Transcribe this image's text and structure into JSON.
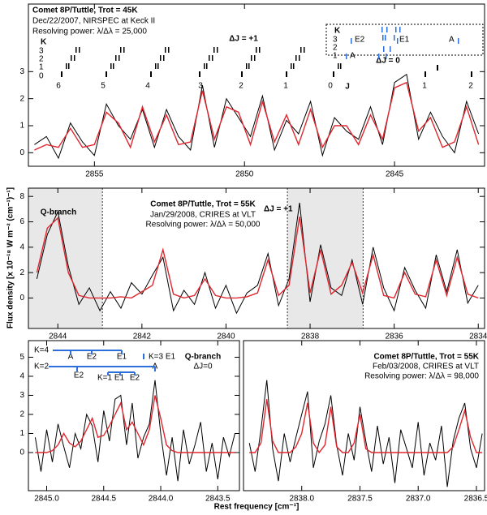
{
  "figure": {
    "ylabel": "Flux density [x 10⁻¹⁸ W m⁻² (cm⁻¹)⁻¹]",
    "xlabel": "Rest frequency [cm⁻¹]"
  },
  "chart_data": [
    {
      "type": "line",
      "annotations": [
        "Comet 8P/Tuttle, Trot = 45K",
        "Dec/22/2007, NIRSPEC at Keck II",
        "Resolving power: λ/Δλ = 25,000",
        "ΔJ = +1",
        "ΔJ = 0",
        "K",
        "3",
        "2",
        "1",
        "0",
        "6",
        "5",
        "4",
        "3",
        "2",
        "1",
        "0",
        "J",
        "1",
        "2",
        "K",
        "3",
        "2",
        "1",
        "E2",
        "E1",
        "A",
        "A"
      ],
      "x": [
        2857.0,
        2856.6,
        2856.2,
        2855.8,
        2855.4,
        2855.0,
        2854.6,
        2854.2,
        2853.8,
        2853.4,
        2853.0,
        2852.6,
        2852.2,
        2851.8,
        2851.4,
        2851.0,
        2850.6,
        2850.2,
        2849.8,
        2849.4,
        2849.0,
        2848.6,
        2848.2,
        2847.8,
        2847.4,
        2847.0,
        2846.6,
        2846.2,
        2845.8,
        2845.4,
        2845.0,
        2844.6,
        2844.2,
        2843.8,
        2843.4,
        2843.0,
        2842.6,
        2842.2
      ],
      "series": [
        {
          "color": "#000000",
          "values": [
            0.3,
            0.6,
            -0.2,
            1.1,
            0.4,
            -0.1,
            1.8,
            1.0,
            0.5,
            1.6,
            0.2,
            1.6,
            0.6,
            0.1,
            2.5,
            0.2,
            2.0,
            1.3,
            0.6,
            2.1,
            0.1,
            1.2,
            0.7,
            1.9,
            -0.1,
            1.3,
            0.8,
            0.5,
            1.7,
            0.3,
            2.6,
            2.9,
            0.5,
            1.5,
            0.6,
            0.0,
            1.9,
            0.7
          ]
        },
        {
          "color": "#e0262e",
          "values": [
            0.1,
            0.3,
            0.2,
            0.9,
            0.2,
            0.3,
            1.5,
            1.1,
            0.2,
            1.7,
            0.4,
            1.4,
            0.3,
            0.4,
            2.3,
            0.5,
            1.7,
            1.5,
            0.3,
            1.9,
            0.4,
            1.4,
            0.3,
            1.6,
            0.2,
            1.0,
            1.0,
            0.3,
            1.4,
            0.5,
            2.4,
            2.6,
            0.8,
            1.3,
            0.2,
            0.4,
            1.7,
            0.3
          ]
        }
      ],
      "xlim": [
        2857.2,
        2842.0
      ],
      "ylim": [
        -0.5,
        5.5
      ],
      "xticks": [
        2855,
        2850,
        2845
      ],
      "yticks": [
        0,
        1,
        2,
        3
      ]
    },
    {
      "type": "line",
      "annotations": [
        "Comet 8P/Tuttle, Trot = 55K",
        "Jan/29/2008, CRIRES at VLT",
        "Resolving power: λ/Δλ = 50,000",
        "ΔJ = +1",
        "Q-branch"
      ],
      "highlight": [
        [
          2844.7,
          2842.94
        ],
        [
          2838.54,
          2836.74
        ]
      ],
      "x": [
        2844.5,
        2844.25,
        2844.0,
        2843.75,
        2843.5,
        2843.25,
        2843.0,
        2842.75,
        2842.5,
        2842.25,
        2842.0,
        2841.75,
        2841.5,
        2841.25,
        2841.0,
        2840.75,
        2840.5,
        2840.25,
        2840.0,
        2839.75,
        2839.5,
        2839.25,
        2839.0,
        2838.75,
        2838.5,
        2838.25,
        2838.0,
        2837.75,
        2837.5,
        2837.25,
        2837.0,
        2836.75,
        2836.5,
        2836.25,
        2836.0,
        2835.75,
        2835.5,
        2835.25,
        2835.0,
        2834.75,
        2834.5,
        2834.25,
        2834.0
      ],
      "series": [
        {
          "color": "#000000",
          "values": [
            1.5,
            5.0,
            6.8,
            2.5,
            -0.5,
            0.8,
            -1.0,
            0.5,
            -0.8,
            1.2,
            0.3,
            1.8,
            3.2,
            -1.0,
            0.6,
            -0.5,
            2.0,
            -0.8,
            1.0,
            -1.2,
            0.4,
            1.0,
            3.5,
            -0.6,
            1.5,
            7.5,
            -0.3,
            4.2,
            0.8,
            0.2,
            3.0,
            -0.5,
            4.0,
            0.8,
            -1.0,
            2.4,
            0.6,
            -0.8,
            3.4,
            0.5,
            3.8,
            -0.4,
            1.0
          ]
        },
        {
          "color": "#e0262e",
          "values": [
            2.0,
            5.5,
            6.3,
            2.0,
            0.2,
            0.0,
            0.0,
            0.0,
            0.1,
            0.0,
            0.5,
            1.0,
            3.8,
            0.3,
            0.0,
            0.2,
            1.5,
            0.2,
            0.0,
            0.0,
            0.1,
            0.4,
            3.0,
            0.2,
            1.0,
            6.4,
            0.4,
            3.8,
            0.3,
            1.0,
            2.8,
            0.4,
            3.4,
            0.2,
            0.0,
            2.0,
            0.3,
            0.1,
            3.0,
            0.2,
            3.2,
            0.3,
            0.0
          ]
        }
      ],
      "xlim": [
        2844.7,
        2833.85
      ],
      "ylim": [
        -2.4,
        8.65
      ],
      "xticks": [
        2844,
        2842,
        2840,
        2838,
        2836,
        2834
      ],
      "yticks": [
        0,
        2,
        4,
        6,
        8
      ]
    },
    {
      "type": "line",
      "annotations": [
        "Q-branch",
        "ΔJ=0",
        "K=4",
        "A",
        "E2",
        "E1",
        "K=3 E1",
        "K=2",
        "E2",
        "K=1 E1",
        "E2",
        "A"
      ],
      "x": [
        2845.1,
        2845.05,
        2845.0,
        2844.95,
        2844.9,
        2844.85,
        2844.8,
        2844.75,
        2844.7,
        2844.65,
        2844.6,
        2844.55,
        2844.5,
        2844.45,
        2844.4,
        2844.35,
        2844.3,
        2844.25,
        2844.2,
        2844.15,
        2844.1,
        2844.05,
        2844.0,
        2843.95,
        2843.9,
        2843.85,
        2843.8,
        2843.75,
        2843.7,
        2843.65,
        2843.6,
        2843.55,
        2843.5,
        2843.45,
        2843.4,
        2843.35
      ],
      "series": [
        {
          "color": "#000000",
          "values": [
            0.8,
            -1.0,
            1.2,
            -0.5,
            1.5,
            0.3,
            -0.8,
            1.0,
            0.2,
            2.0,
            1.4,
            -0.5,
            2.2,
            0.6,
            2.8,
            3.0,
            0.4,
            2.6,
            -0.3,
            0.8,
            1.5,
            3.8,
            1.0,
            -1.2,
            0.8,
            -1.5,
            1.2,
            -0.6,
            0.4,
            1.6,
            -1.0,
            0.5,
            -1.4,
            0.8,
            -0.2,
            1.0
          ]
        },
        {
          "color": "#e0262e",
          "values": [
            0.0,
            0.0,
            0.0,
            0.1,
            0.4,
            1.0,
            0.5,
            0.3,
            0.6,
            1.2,
            1.8,
            0.8,
            0.9,
            1.4,
            2.0,
            2.6,
            1.2,
            1.6,
            1.0,
            0.4,
            1.2,
            3.0,
            1.8,
            0.4,
            0.1,
            0.0,
            0.0,
            0.0,
            0.0,
            0.0,
            0.0,
            0.0,
            0.0,
            0.0,
            0.0,
            0.0
          ]
        }
      ],
      "xlim": [
        2845.16,
        2843.31
      ],
      "ylim": [
        -2.0,
        5.87
      ],
      "xticks": [
        {
          "value": 2845,
          "label": "2845.0"
        },
        {
          "value": 2844.5,
          "label": "2844.5"
        },
        {
          "value": 2844,
          "label": "2844.0"
        },
        {
          "value": 2843.5,
          "label": "2843.5"
        }
      ],
      "yticks": [
        0,
        1,
        2,
        3,
        4,
        5
      ]
    },
    {
      "type": "line",
      "annotations": [
        "Comet 8P/Tuttle, Trot = 55K",
        "Feb/03/2008, CRIRES at VLT",
        "Resolving power: λ/Δλ = 98,000"
      ],
      "x": [
        2838.45,
        2838.4,
        2838.35,
        2838.3,
        2838.25,
        2838.2,
        2838.15,
        2838.1,
        2838.05,
        2838.0,
        2837.95,
        2837.9,
        2837.85,
        2837.8,
        2837.75,
        2837.7,
        2837.65,
        2837.6,
        2837.55,
        2837.5,
        2837.45,
        2837.4,
        2837.35,
        2837.3,
        2837.25,
        2837.2,
        2837.15,
        2837.1,
        2837.05,
        2837.0,
        2836.95,
        2836.9,
        2836.85,
        2836.8,
        2836.75,
        2836.7,
        2836.65,
        2836.6,
        2836.55,
        2836.5,
        2836.45
      ],
      "series": [
        {
          "color": "#000000",
          "values": [
            0.5,
            -1.0,
            1.2,
            3.8,
            0.2,
            -1.5,
            1.0,
            -0.5,
            0.8,
            2.0,
            3.2,
            -0.8,
            0.6,
            1.5,
            3.0,
            0.4,
            -1.2,
            1.0,
            -0.4,
            2.4,
            0.6,
            -1.0,
            1.4,
            -0.6,
            0.8,
            -1.6,
            1.2,
            0.2,
            -0.8,
            1.6,
            -1.2,
            0.5,
            -0.4,
            1.4,
            -1.8,
            0.6,
            1.8,
            2.6,
            0.2,
            -0.8,
            1.0
          ]
        },
        {
          "color": "#e0262e",
          "values": [
            0,
            0,
            0.5,
            2.8,
            0.6,
            0,
            0,
            0,
            0.3,
            1.0,
            2.6,
            0.5,
            0,
            0.4,
            2.4,
            0.3,
            0,
            0,
            0.5,
            2.0,
            0.2,
            0,
            0,
            0,
            0,
            0,
            0,
            0,
            0,
            0,
            0,
            0,
            0,
            0,
            0,
            0.3,
            1.2,
            2.2,
            0.8,
            0,
            0
          ]
        }
      ],
      "xlim": [
        2838.5,
        2836.43
      ],
      "ylim": [
        -2.0,
        5.87
      ],
      "xticks": [
        {
          "value": 2838,
          "label": "2838.0"
        },
        {
          "value": 2837.5,
          "label": "2837.5"
        },
        {
          "value": 2837,
          "label": "2837.0"
        },
        {
          "value": 2836.5,
          "label": "2836.5"
        }
      ]
    }
  ]
}
